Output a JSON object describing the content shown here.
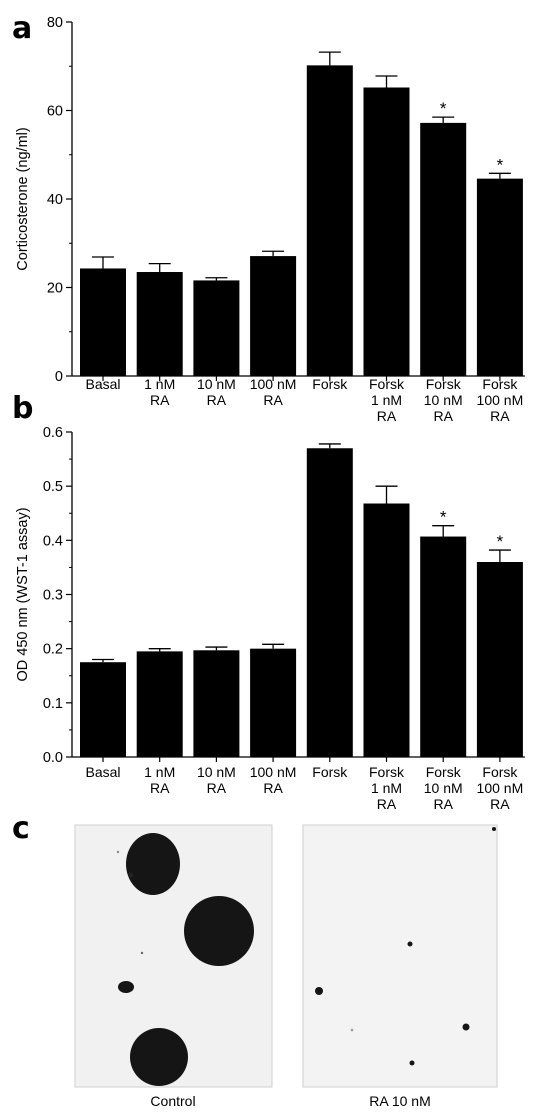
{
  "panels": {
    "a": {
      "letter": "a"
    },
    "b": {
      "letter": "b"
    },
    "c": {
      "letter": "c"
    }
  },
  "chart_data": [
    {
      "type": "bar",
      "panel": "a",
      "ylabel": "Corticosterone (ng/ml)",
      "xlabel": "",
      "ylim": [
        0,
        80
      ],
      "yticks": [
        0,
        20,
        40,
        60,
        80
      ],
      "ytick_labels": [
        "0",
        "20",
        "40",
        "60",
        "80"
      ],
      "categories": [
        [
          "Basal"
        ],
        [
          "1 nM",
          "RA"
        ],
        [
          "10 nM",
          "RA"
        ],
        [
          "100 nM",
          "RA"
        ],
        [
          "Forsk"
        ],
        [
          "Forsk",
          "1 nM",
          "RA"
        ],
        [
          "Forsk",
          "10 nM",
          "RA"
        ],
        [
          "Forsk",
          "100 nM",
          "RA"
        ]
      ],
      "values": [
        24.3,
        23.5,
        21.6,
        27.1,
        70.2,
        65.2,
        57.2,
        44.6
      ],
      "errors": [
        2.6,
        1.9,
        0.6,
        1.1,
        3.0,
        2.6,
        1.3,
        1.2
      ],
      "significance": [
        "",
        "",
        "",
        "",
        "",
        "",
        "*",
        "*"
      ],
      "bar_color": "#000000"
    },
    {
      "type": "bar",
      "panel": "b",
      "ylabel": "OD 450 nm (WST-1 assay)",
      "xlabel": "",
      "ylim": [
        0,
        0.6
      ],
      "yticks": [
        0,
        0.1,
        0.2,
        0.3,
        0.4,
        0.5,
        0.6
      ],
      "ytick_labels": [
        "0.0",
        "0.1",
        "0.2",
        "0.3",
        "0.4",
        "0.5",
        "0.6"
      ],
      "categories": [
        [
          "Basal"
        ],
        [
          "1 nM",
          "RA"
        ],
        [
          "10 nM",
          "RA"
        ],
        [
          "100 nM",
          "RA"
        ],
        [
          "Forsk"
        ],
        [
          "Forsk",
          "1 nM",
          "RA"
        ],
        [
          "Forsk",
          "10 nM",
          "RA"
        ],
        [
          "Forsk",
          "100 nM",
          "RA"
        ]
      ],
      "values": [
        0.175,
        0.195,
        0.197,
        0.2,
        0.57,
        0.468,
        0.407,
        0.36
      ],
      "errors": [
        0.005,
        0.005,
        0.006,
        0.008,
        0.008,
        0.032,
        0.02,
        0.022
      ],
      "significance": [
        "",
        "",
        "",
        "",
        "",
        "",
        "*",
        "*"
      ],
      "bar_color": "#000000"
    }
  ],
  "images": {
    "left_caption": "Control",
    "right_caption": "RA 10 nM"
  }
}
